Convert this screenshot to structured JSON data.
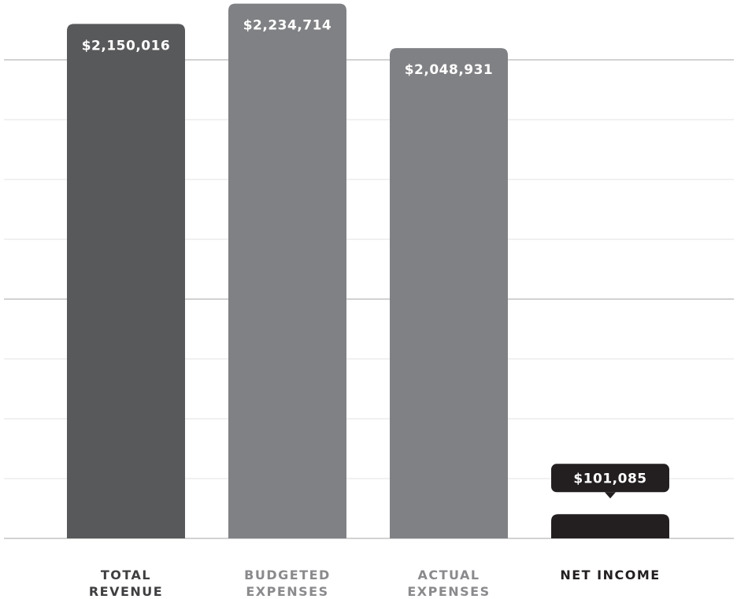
{
  "chart_data": {
    "type": "bar",
    "categories": [
      {
        "lines": [
          "TOTAL",
          "REVENUE"
        ]
      },
      {
        "lines": [
          "BUDGETED",
          "EXPENSES"
        ]
      },
      {
        "lines": [
          "ACTUAL",
          "EXPENSES"
        ]
      },
      {
        "lines": [
          "NET INCOME"
        ]
      }
    ],
    "values": [
      2150016,
      2234714,
      2048931,
      101085
    ],
    "value_labels": [
      "$2,150,016",
      "$2,234,714",
      "$2,048,931",
      "$101,085"
    ],
    "ylim": [
      0,
      2000000
    ],
    "grid": true,
    "bar_colors": [
      "#58595b",
      "#808184",
      "#808184",
      "#231f20"
    ],
    "label_colors": [
      "#3f3f41",
      "#8a8a8d",
      "#8a8a8d",
      "#231f20"
    ],
    "gridline_color_major": "#b8b8b8",
    "gridline_color_minor": "#e3e3e3"
  }
}
